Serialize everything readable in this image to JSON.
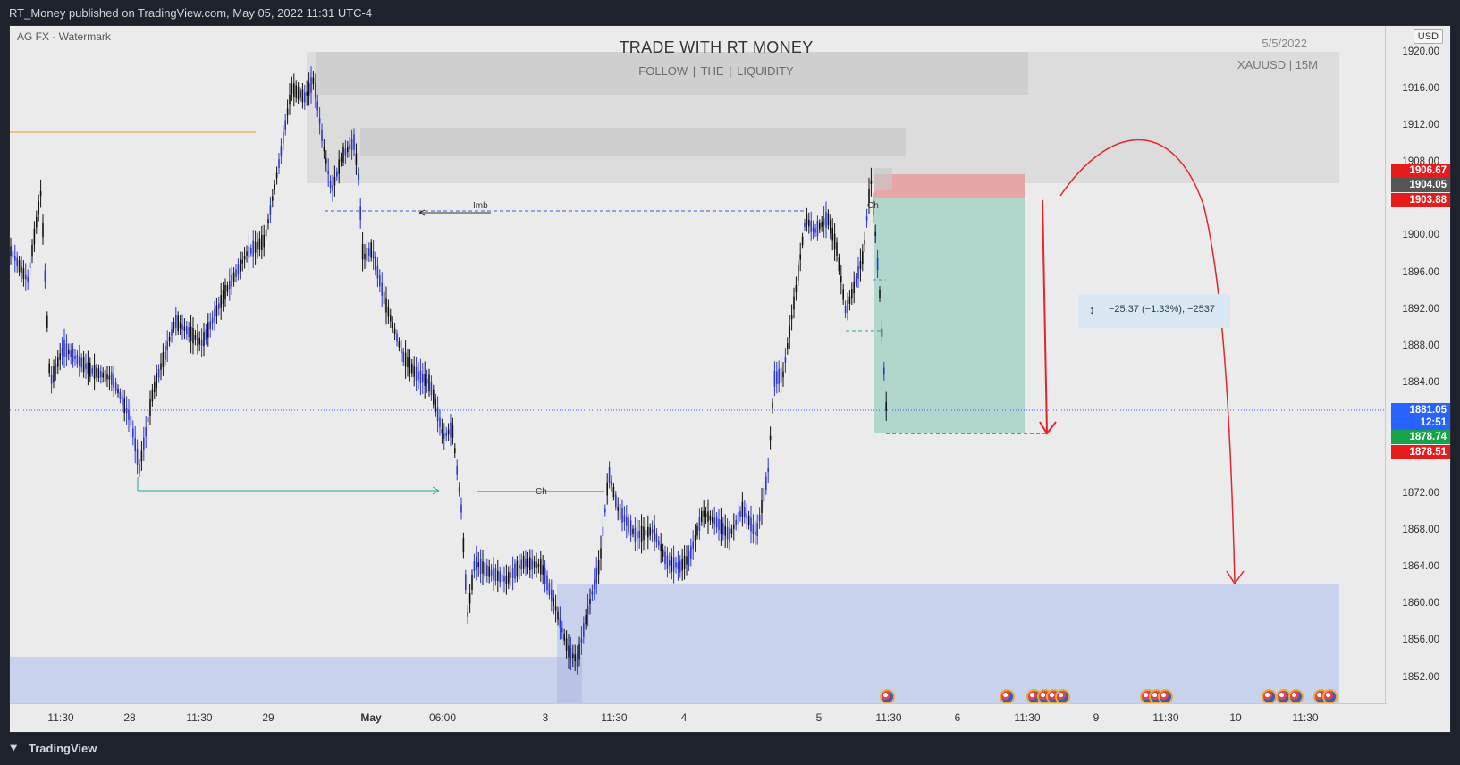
{
  "header": {
    "published": "RT_Money published on TradingView.com, May 05, 2022 11:31 UTC-4"
  },
  "chart": {
    "watermark": "AG FX - Watermark",
    "title": "TRADE WITH RT MONEY",
    "subtitle": "FOLLOW  | THE |  LIQUIDITY",
    "date": "5/5/2022",
    "symbol": "XAUUSD | 15M",
    "currency": "USD",
    "labels": {
      "imb": "Imb",
      "ch1": "Ch",
      "ch2": "Ch"
    },
    "measure": "−25.37 (−1.33%), −2537",
    "measure_icon": "↕",
    "colors": {
      "candle": "#2b35d6",
      "stop_zone": "#e7a6a6",
      "target_zone": "#a7d3c8",
      "demand_zone": "#c9d2ec",
      "supply_zone": "#cfcfcf",
      "arrow": "#e0262b",
      "orange": "#f39320",
      "teal": "#26a69a"
    }
  },
  "price_axis": {
    "ticks": [
      "1920.00",
      "1916.00",
      "1912.00",
      "1908.00",
      "1904.00",
      "1900.00",
      "1896.00",
      "1892.00",
      "1888.00",
      "1884.00",
      "1880.00",
      "1876.00",
      "1872.00",
      "1868.00",
      "1864.00",
      "1860.00",
      "1856.00",
      "1852.00"
    ],
    "tags": [
      {
        "value": "1906.67",
        "color": "#e61b1b"
      },
      {
        "value": "1904.05",
        "color": "#555555"
      },
      {
        "value": "1903.88",
        "color": "#e61b1b"
      },
      {
        "value": "1881.05",
        "color": "#2862ff"
      },
      {
        "value": "12:51",
        "color": "#2862ff"
      },
      {
        "value": "1878.74",
        "color": "#16a34a"
      },
      {
        "value": "1878.51",
        "color": "#e61b1b"
      }
    ]
  },
  "time_axis": {
    "ticks": [
      "11:30",
      "28",
      "11:30",
      "29",
      "May",
      "06:00",
      "3",
      "11:30",
      "4",
      "5",
      "11:30",
      "6",
      "11:30",
      "9",
      "11:30",
      "10",
      "11:30"
    ]
  },
  "footer": {
    "brand": "TradingView",
    "logo_icon": "tradingview-logo-icon"
  }
}
